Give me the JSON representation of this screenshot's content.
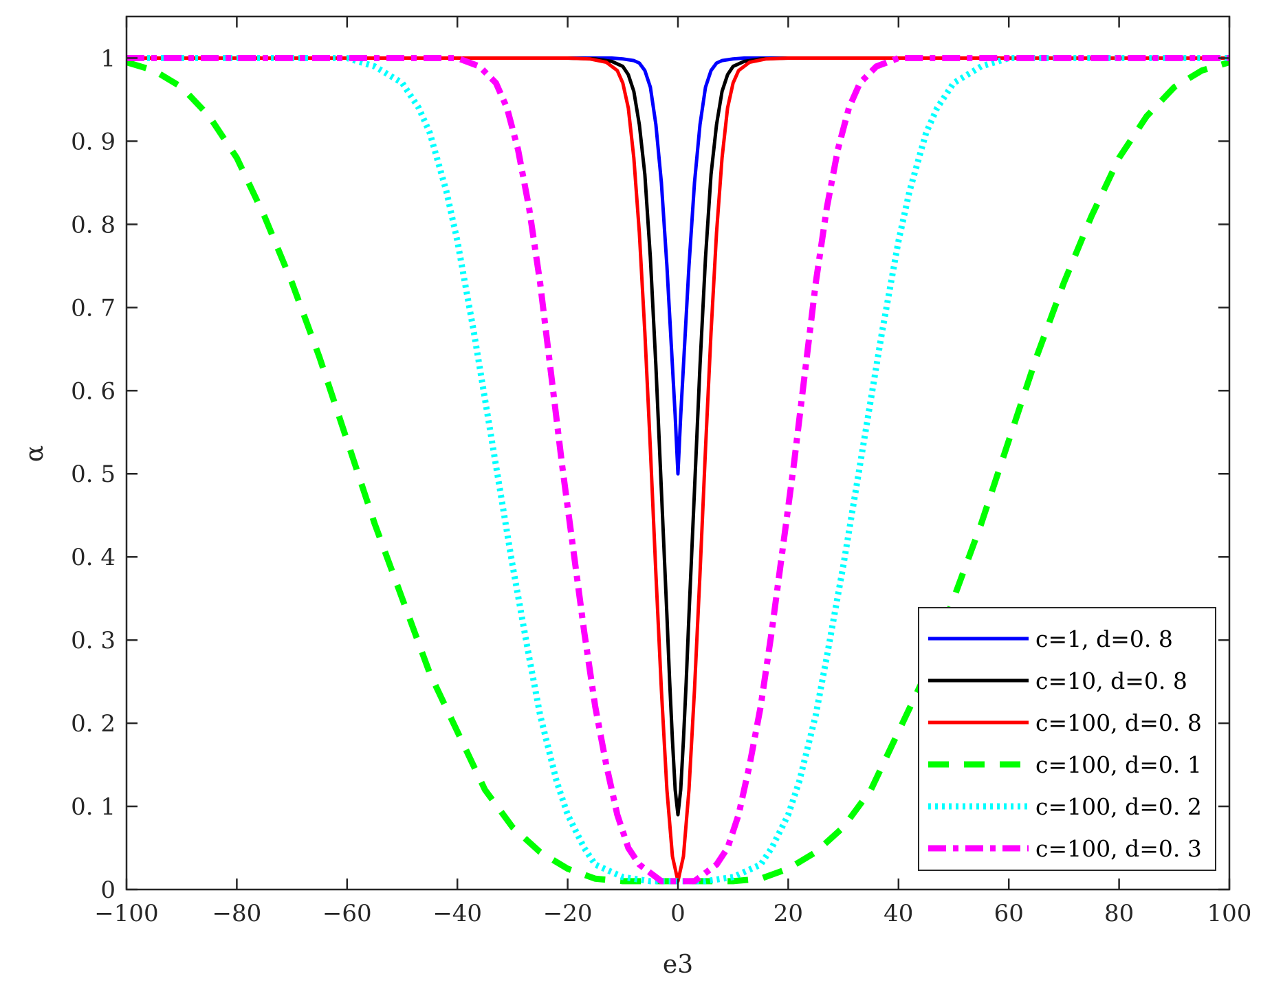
{
  "chart_data": {
    "type": "line",
    "xlabel": "e3",
    "ylabel": "α",
    "xlim": [
      -100,
      100
    ],
    "ylim": [
      0,
      1.05
    ],
    "xticks": [
      -100,
      -80,
      -60,
      -40,
      -20,
      0,
      20,
      40,
      60,
      80,
      100
    ],
    "xtick_labels": [
      "−100",
      "−80",
      "−60",
      "−40",
      "−20",
      "0",
      "20",
      "40",
      "60",
      "80",
      "100"
    ],
    "yticks": [
      0,
      0.1,
      0.2,
      0.3,
      0.4,
      0.5,
      0.6,
      0.7,
      0.8,
      0.9,
      1
    ],
    "ytick_labels": [
      "0",
      "0. 1",
      "0. 2",
      "0. 3",
      "0. 4",
      "0. 5",
      "0. 6",
      "0. 7",
      "0. 8",
      "0. 9",
      "1"
    ],
    "grid": false,
    "legend_position": "bottom-right",
    "series": [
      {
        "name": "c=1, d=0. 8",
        "color": "#0000ff",
        "style": "solid",
        "points": [
          [
            -100,
            1
          ],
          [
            -20,
            1
          ],
          [
            -12,
            1
          ],
          [
            -10,
            0.999
          ],
          [
            -8,
            0.997
          ],
          [
            -7,
            0.994
          ],
          [
            -6,
            0.985
          ],
          [
            -5,
            0.965
          ],
          [
            -4,
            0.92
          ],
          [
            -3,
            0.85
          ],
          [
            -2,
            0.75
          ],
          [
            -1.5,
            0.69
          ],
          [
            -1,
            0.63
          ],
          [
            -0.5,
            0.57
          ],
          [
            0,
            0.5
          ],
          [
            0.5,
            0.57
          ],
          [
            1,
            0.63
          ],
          [
            1.5,
            0.69
          ],
          [
            2,
            0.75
          ],
          [
            3,
            0.85
          ],
          [
            4,
            0.92
          ],
          [
            5,
            0.965
          ],
          [
            6,
            0.985
          ],
          [
            7,
            0.994
          ],
          [
            8,
            0.997
          ],
          [
            10,
            0.999
          ],
          [
            12,
            1
          ],
          [
            20,
            1
          ],
          [
            100,
            1
          ]
        ]
      },
      {
        "name": "c=10, d=0. 8",
        "color": "#000000",
        "style": "solid",
        "points": [
          [
            -100,
            1
          ],
          [
            -20,
            1
          ],
          [
            -15,
            0.999
          ],
          [
            -12,
            0.996
          ],
          [
            -10,
            0.99
          ],
          [
            -9,
            0.98
          ],
          [
            -8,
            0.96
          ],
          [
            -7,
            0.92
          ],
          [
            -6,
            0.86
          ],
          [
            -5,
            0.76
          ],
          [
            -4,
            0.63
          ],
          [
            -3,
            0.48
          ],
          [
            -2,
            0.33
          ],
          [
            -1.5,
            0.25
          ],
          [
            -1,
            0.18
          ],
          [
            -0.5,
            0.12
          ],
          [
            0,
            0.09
          ],
          [
            0.5,
            0.12
          ],
          [
            1,
            0.18
          ],
          [
            1.5,
            0.25
          ],
          [
            2,
            0.33
          ],
          [
            3,
            0.48
          ],
          [
            4,
            0.63
          ],
          [
            5,
            0.76
          ],
          [
            6,
            0.86
          ],
          [
            7,
            0.92
          ],
          [
            8,
            0.96
          ],
          [
            9,
            0.98
          ],
          [
            10,
            0.99
          ],
          [
            12,
            0.996
          ],
          [
            15,
            0.999
          ],
          [
            20,
            1
          ],
          [
            100,
            1
          ]
        ]
      },
      {
        "name": "c=100, d=0. 8",
        "color": "#ff0000",
        "style": "solid",
        "points": [
          [
            -100,
            1
          ],
          [
            -20,
            1
          ],
          [
            -16,
            0.999
          ],
          [
            -13,
            0.995
          ],
          [
            -11,
            0.985
          ],
          [
            -10,
            0.97
          ],
          [
            -9,
            0.94
          ],
          [
            -8,
            0.88
          ],
          [
            -7,
            0.79
          ],
          [
            -6,
            0.67
          ],
          [
            -5,
            0.53
          ],
          [
            -4,
            0.38
          ],
          [
            -3,
            0.24
          ],
          [
            -2,
            0.12
          ],
          [
            -1,
            0.04
          ],
          [
            0,
            0.01
          ],
          [
            1,
            0.04
          ],
          [
            2,
            0.12
          ],
          [
            3,
            0.24
          ],
          [
            4,
            0.38
          ],
          [
            5,
            0.53
          ],
          [
            6,
            0.67
          ],
          [
            7,
            0.79
          ],
          [
            8,
            0.88
          ],
          [
            9,
            0.94
          ],
          [
            10,
            0.97
          ],
          [
            11,
            0.985
          ],
          [
            13,
            0.995
          ],
          [
            16,
            0.999
          ],
          [
            20,
            1
          ],
          [
            100,
            1
          ]
        ]
      },
      {
        "name": "c=100, d=0. 1",
        "color": "#00ff00",
        "style": "dashed",
        "points": [
          [
            -100,
            0.995
          ],
          [
            -95,
            0.985
          ],
          [
            -90,
            0.965
          ],
          [
            -85,
            0.93
          ],
          [
            -80,
            0.88
          ],
          [
            -75,
            0.81
          ],
          [
            -70,
            0.73
          ],
          [
            -65,
            0.64
          ],
          [
            -60,
            0.54
          ],
          [
            -55,
            0.44
          ],
          [
            -50,
            0.35
          ],
          [
            -45,
            0.26
          ],
          [
            -40,
            0.19
          ],
          [
            -35,
            0.12
          ],
          [
            -30,
            0.075
          ],
          [
            -25,
            0.045
          ],
          [
            -20,
            0.025
          ],
          [
            -15,
            0.013
          ],
          [
            -10,
            0.01
          ],
          [
            -5,
            0.01
          ],
          [
            0,
            0.01
          ],
          [
            5,
            0.01
          ],
          [
            10,
            0.01
          ],
          [
            15,
            0.013
          ],
          [
            20,
            0.025
          ],
          [
            25,
            0.045
          ],
          [
            30,
            0.075
          ],
          [
            35,
            0.12
          ],
          [
            40,
            0.19
          ],
          [
            45,
            0.26
          ],
          [
            50,
            0.35
          ],
          [
            55,
            0.44
          ],
          [
            60,
            0.54
          ],
          [
            65,
            0.64
          ],
          [
            70,
            0.73
          ],
          [
            75,
            0.81
          ],
          [
            80,
            0.88
          ],
          [
            85,
            0.93
          ],
          [
            90,
            0.965
          ],
          [
            95,
            0.985
          ],
          [
            100,
            0.995
          ]
        ]
      },
      {
        "name": "c=100, d=0. 2",
        "color": "#00ffff",
        "style": "dotted",
        "points": [
          [
            -100,
            1
          ],
          [
            -60,
            1
          ],
          [
            -55,
            0.99
          ],
          [
            -50,
            0.97
          ],
          [
            -47,
            0.94
          ],
          [
            -45,
            0.91
          ],
          [
            -42,
            0.84
          ],
          [
            -40,
            0.78
          ],
          [
            -37,
            0.67
          ],
          [
            -35,
            0.59
          ],
          [
            -32,
            0.47
          ],
          [
            -30,
            0.39
          ],
          [
            -27,
            0.28
          ],
          [
            -25,
            0.21
          ],
          [
            -22,
            0.13
          ],
          [
            -20,
            0.09
          ],
          [
            -17,
            0.05
          ],
          [
            -15,
            0.03
          ],
          [
            -10,
            0.015
          ],
          [
            -5,
            0.01
          ],
          [
            0,
            0.01
          ],
          [
            5,
            0.01
          ],
          [
            10,
            0.015
          ],
          [
            15,
            0.03
          ],
          [
            17,
            0.05
          ],
          [
            20,
            0.09
          ],
          [
            22,
            0.13
          ],
          [
            25,
            0.21
          ],
          [
            27,
            0.28
          ],
          [
            30,
            0.39
          ],
          [
            32,
            0.47
          ],
          [
            35,
            0.59
          ],
          [
            37,
            0.67
          ],
          [
            40,
            0.78
          ],
          [
            42,
            0.84
          ],
          [
            45,
            0.91
          ],
          [
            47,
            0.94
          ],
          [
            50,
            0.97
          ],
          [
            55,
            0.99
          ],
          [
            60,
            1
          ],
          [
            100,
            1
          ]
        ]
      },
      {
        "name": "c=100, d=0. 3",
        "color": "#ff00ff",
        "style": "dashdot",
        "points": [
          [
            -100,
            1
          ],
          [
            -40,
            1
          ],
          [
            -36,
            0.99
          ],
          [
            -33,
            0.97
          ],
          [
            -31,
            0.94
          ],
          [
            -29,
            0.89
          ],
          [
            -27,
            0.82
          ],
          [
            -25,
            0.73
          ],
          [
            -23,
            0.62
          ],
          [
            -21,
            0.51
          ],
          [
            -19,
            0.41
          ],
          [
            -17,
            0.31
          ],
          [
            -15,
            0.22
          ],
          [
            -13,
            0.15
          ],
          [
            -11,
            0.09
          ],
          [
            -9,
            0.05
          ],
          [
            -7,
            0.03
          ],
          [
            -5,
            0.02
          ],
          [
            -3,
            0.01
          ],
          [
            0,
            0.01
          ],
          [
            3,
            0.01
          ],
          [
            5,
            0.02
          ],
          [
            7,
            0.03
          ],
          [
            9,
            0.05
          ],
          [
            11,
            0.09
          ],
          [
            13,
            0.15
          ],
          [
            15,
            0.22
          ],
          [
            17,
            0.31
          ],
          [
            19,
            0.41
          ],
          [
            21,
            0.51
          ],
          [
            23,
            0.62
          ],
          [
            25,
            0.73
          ],
          [
            27,
            0.82
          ],
          [
            29,
            0.89
          ],
          [
            31,
            0.94
          ],
          [
            33,
            0.97
          ],
          [
            36,
            0.99
          ],
          [
            40,
            1
          ],
          [
            100,
            1
          ]
        ]
      }
    ]
  }
}
